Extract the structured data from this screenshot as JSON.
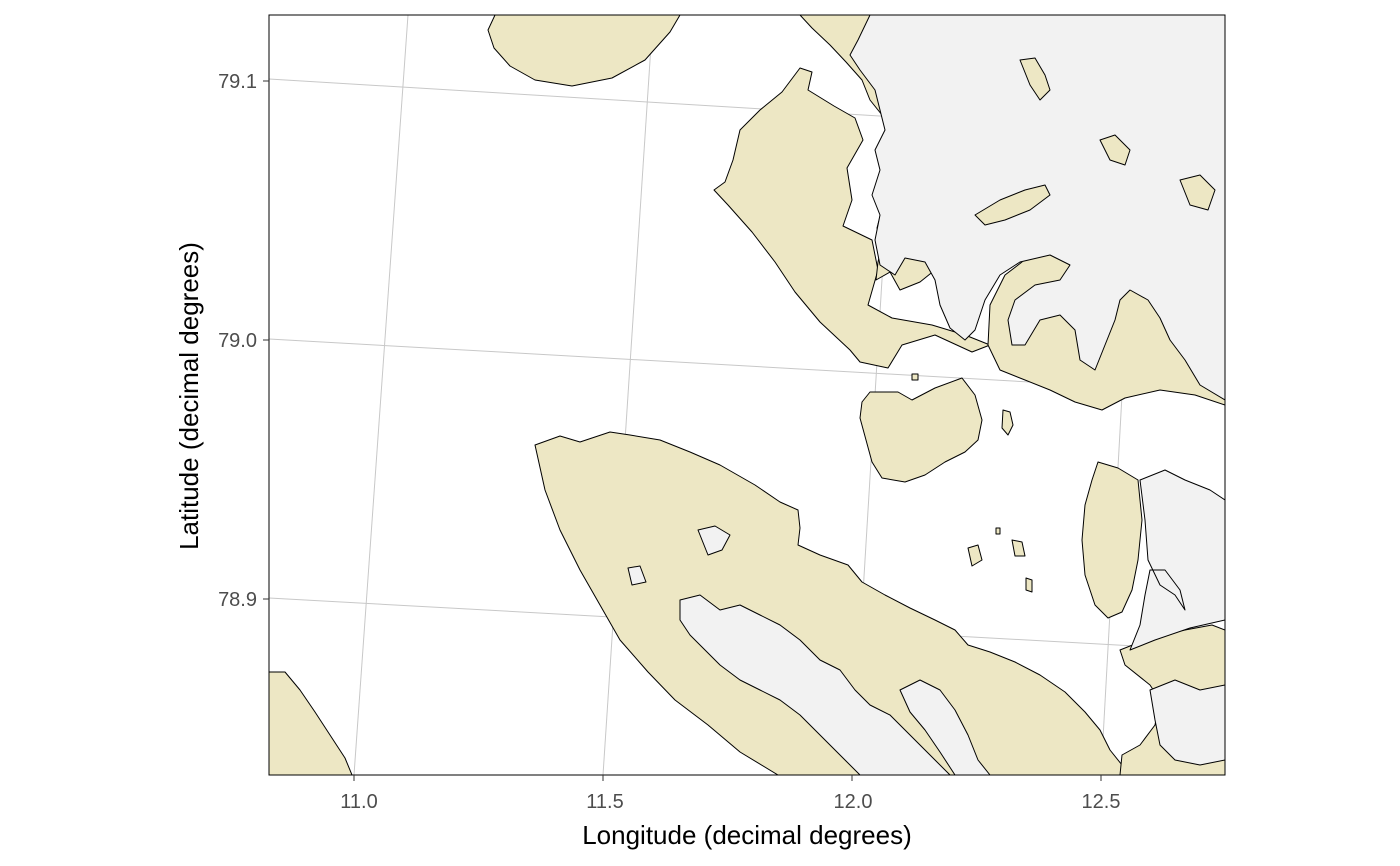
{
  "map": {
    "xlabel": "Longitude (decimal degrees)",
    "ylabel": "Latitude (decimal degrees)",
    "x_ticks": [
      "11.0",
      "11.5",
      "12.0",
      "12.5"
    ],
    "y_ticks": [
      "79.1",
      "79.0",
      "78.9"
    ],
    "xlim": [
      10.83,
      12.75
    ],
    "ylim": [
      78.83,
      79.125
    ],
    "colors": {
      "sea": "#ffffff",
      "land": "#ede7c4",
      "glacier": "#f2f2f2",
      "coastline": "#000000",
      "graticule": "#c8c8c8"
    }
  }
}
